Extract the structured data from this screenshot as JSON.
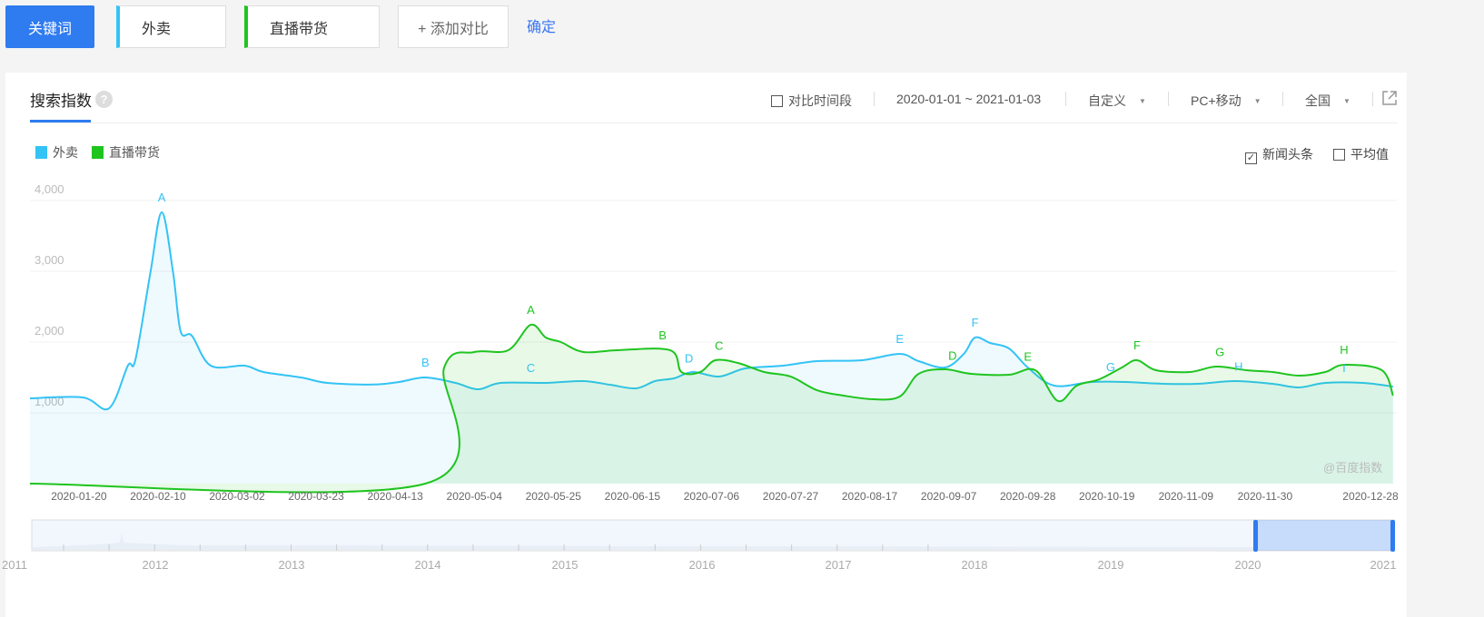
{
  "toolbar": {
    "keyword_label": "关键词",
    "keywords": [
      {
        "text": "外卖",
        "color": "#33c3f5"
      },
      {
        "text": "直播带货",
        "color": "#1fc41f"
      }
    ],
    "add_compare": "+ 添加对比",
    "confirm": "确定"
  },
  "panel": {
    "tab_title": "搜索指数",
    "help": "?",
    "compare_period": "对比时间段",
    "date_range": "2020-01-01 ~ 2021-01-03",
    "range_mode": "自定义",
    "device": "PC+移动",
    "region": "全国",
    "export_icon": "external-link-icon"
  },
  "legend": [
    {
      "name": "外卖",
      "color": "#33c3f5"
    },
    {
      "name": "直播带货",
      "color": "#1fc41f"
    }
  ],
  "options": {
    "news": {
      "label": "新闻头条",
      "checked": true
    },
    "average": {
      "label": "平均值",
      "checked": false
    }
  },
  "watermark": "@百度指数",
  "chart_data": {
    "type": "area",
    "ylim": [
      0,
      4000
    ],
    "yticks": [
      "1,000",
      "2,000",
      "3,000",
      "4,000"
    ],
    "ytick_values": [
      1000,
      2000,
      3000,
      4000
    ],
    "xticks": [
      "2020-01-20",
      "2020-02-10",
      "2020-03-02",
      "2020-03-23",
      "2020-04-13",
      "2020-05-04",
      "2020-05-25",
      "2020-06-15",
      "2020-07-06",
      "2020-07-27",
      "2020-08-17",
      "2020-09-07",
      "2020-09-28",
      "2020-10-19",
      "2020-11-09",
      "2020-11-30",
      "2020-12-28"
    ],
    "grid": true,
    "legend_position": "top-left",
    "series": [
      {
        "name": "外卖",
        "color": "#33c3f5",
        "points": [
          [
            "2020-01-07",
            1205
          ],
          [
            "2020-01-21",
            1218
          ],
          [
            "2020-01-28",
            1064
          ],
          [
            "2020-02-02",
            1667
          ],
          [
            "2020-02-04",
            1750
          ],
          [
            "2020-02-08",
            2987
          ],
          [
            "2020-02-11",
            3833
          ],
          [
            "2020-02-14",
            2987
          ],
          [
            "2020-02-16",
            2154
          ],
          [
            "2020-02-19",
            2090
          ],
          [
            "2020-02-24",
            1667
          ],
          [
            "2020-03-04",
            1667
          ],
          [
            "2020-03-09",
            1577
          ],
          [
            "2020-03-19",
            1500
          ],
          [
            "2020-03-26",
            1423
          ],
          [
            "2020-04-07",
            1400
          ],
          [
            "2020-04-14",
            1436
          ],
          [
            "2020-04-21",
            1500
          ],
          [
            "2020-04-29",
            1423
          ],
          [
            "2020-05-05",
            1333
          ],
          [
            "2020-05-11",
            1423
          ],
          [
            "2020-05-23",
            1423
          ],
          [
            "2020-06-02",
            1449
          ],
          [
            "2020-06-09",
            1397
          ],
          [
            "2020-06-16",
            1346
          ],
          [
            "2020-06-21",
            1449
          ],
          [
            "2020-06-26",
            1487
          ],
          [
            "2020-07-01",
            1577
          ],
          [
            "2020-07-08",
            1513
          ],
          [
            "2020-07-15",
            1628
          ],
          [
            "2020-07-25",
            1667
          ],
          [
            "2020-08-03",
            1731
          ],
          [
            "2020-08-15",
            1744
          ],
          [
            "2020-08-25",
            1833
          ],
          [
            "2020-08-30",
            1731
          ],
          [
            "2020-09-06",
            1641
          ],
          [
            "2020-09-11",
            1833
          ],
          [
            "2020-09-14",
            2064
          ],
          [
            "2020-09-18",
            1987
          ],
          [
            "2020-09-23",
            1910
          ],
          [
            "2020-09-28",
            1641
          ],
          [
            "2020-10-05",
            1385
          ],
          [
            "2020-10-15",
            1436
          ],
          [
            "2020-10-24",
            1436
          ],
          [
            "2020-11-03",
            1410
          ],
          [
            "2020-11-12",
            1410
          ],
          [
            "2020-11-22",
            1449
          ],
          [
            "2020-12-02",
            1410
          ],
          [
            "2020-12-09",
            1359
          ],
          [
            "2020-12-16",
            1423
          ],
          [
            "2020-12-26",
            1423
          ],
          [
            "2021-01-03",
            1372
          ]
        ]
      },
      {
        "name": "直播带货",
        "color": "#1fc41f",
        "points": [
          [
            "2020-01-07",
            0
          ],
          [
            "2020-04-21",
            0
          ],
          [
            "2020-04-26",
            1641
          ],
          [
            "2020-05-04",
            1859
          ],
          [
            "2020-05-13",
            1885
          ],
          [
            "2020-05-19",
            2244
          ],
          [
            "2020-05-23",
            2064
          ],
          [
            "2020-05-27",
            2000
          ],
          [
            "2020-06-02",
            1859
          ],
          [
            "2020-06-11",
            1885
          ],
          [
            "2020-06-25",
            1885
          ],
          [
            "2020-06-28",
            1577
          ],
          [
            "2020-07-03",
            1577
          ],
          [
            "2020-07-07",
            1744
          ],
          [
            "2020-07-13",
            1705
          ],
          [
            "2020-07-20",
            1577
          ],
          [
            "2020-07-27",
            1513
          ],
          [
            "2020-08-03",
            1320
          ],
          [
            "2020-08-10",
            1244
          ],
          [
            "2020-08-18",
            1192
          ],
          [
            "2020-08-25",
            1231
          ],
          [
            "2020-08-30",
            1551
          ],
          [
            "2020-09-06",
            1615
          ],
          [
            "2020-09-13",
            1551
          ],
          [
            "2020-09-23",
            1538
          ],
          [
            "2020-09-30",
            1603
          ],
          [
            "2020-10-06",
            1167
          ],
          [
            "2020-10-11",
            1385
          ],
          [
            "2020-10-17",
            1474
          ],
          [
            "2020-10-23",
            1641
          ],
          [
            "2020-10-27",
            1744
          ],
          [
            "2020-11-01",
            1603
          ],
          [
            "2020-11-10",
            1577
          ],
          [
            "2020-11-17",
            1654
          ],
          [
            "2020-11-25",
            1603
          ],
          [
            "2020-12-02",
            1577
          ],
          [
            "2020-12-09",
            1526
          ],
          [
            "2020-12-16",
            1577
          ],
          [
            "2020-12-21",
            1679
          ],
          [
            "2020-12-31",
            1603
          ],
          [
            "2021-01-03",
            1244
          ]
        ]
      }
    ],
    "annotations": [
      {
        "series": 0,
        "label": "A",
        "date": "2020-02-11"
      },
      {
        "series": 0,
        "label": "B",
        "date": "2020-04-21"
      },
      {
        "series": 0,
        "label": "C",
        "date": "2020-05-19"
      },
      {
        "series": 0,
        "label": "D",
        "date": "2020-06-30"
      },
      {
        "series": 0,
        "label": "E",
        "date": "2020-08-25"
      },
      {
        "series": 0,
        "label": "F",
        "date": "2020-09-14"
      },
      {
        "series": 0,
        "label": "G",
        "date": "2020-10-20"
      },
      {
        "series": 0,
        "label": "H",
        "date": "2020-11-23"
      },
      {
        "series": 0,
        "label": "I",
        "date": "2020-12-21"
      },
      {
        "series": 1,
        "label": "A",
        "date": "2020-05-19"
      },
      {
        "series": 1,
        "label": "B",
        "date": "2020-06-23"
      },
      {
        "series": 1,
        "label": "C",
        "date": "2020-07-08"
      },
      {
        "series": 1,
        "label": "D",
        "date": "2020-09-08"
      },
      {
        "series": 1,
        "label": "E",
        "date": "2020-09-28"
      },
      {
        "series": 1,
        "label": "F",
        "date": "2020-10-27"
      },
      {
        "series": 1,
        "label": "G",
        "date": "2020-11-18"
      },
      {
        "series": 1,
        "label": "H",
        "date": "2020-12-21"
      }
    ]
  },
  "navigator": {
    "years": [
      "2011",
      "2012",
      "2013",
      "2014",
      "2015",
      "2016",
      "2017",
      "2018",
      "2019",
      "2020",
      "2021"
    ],
    "selected_range": [
      "2020-01-01",
      "2021-01-03"
    ]
  }
}
